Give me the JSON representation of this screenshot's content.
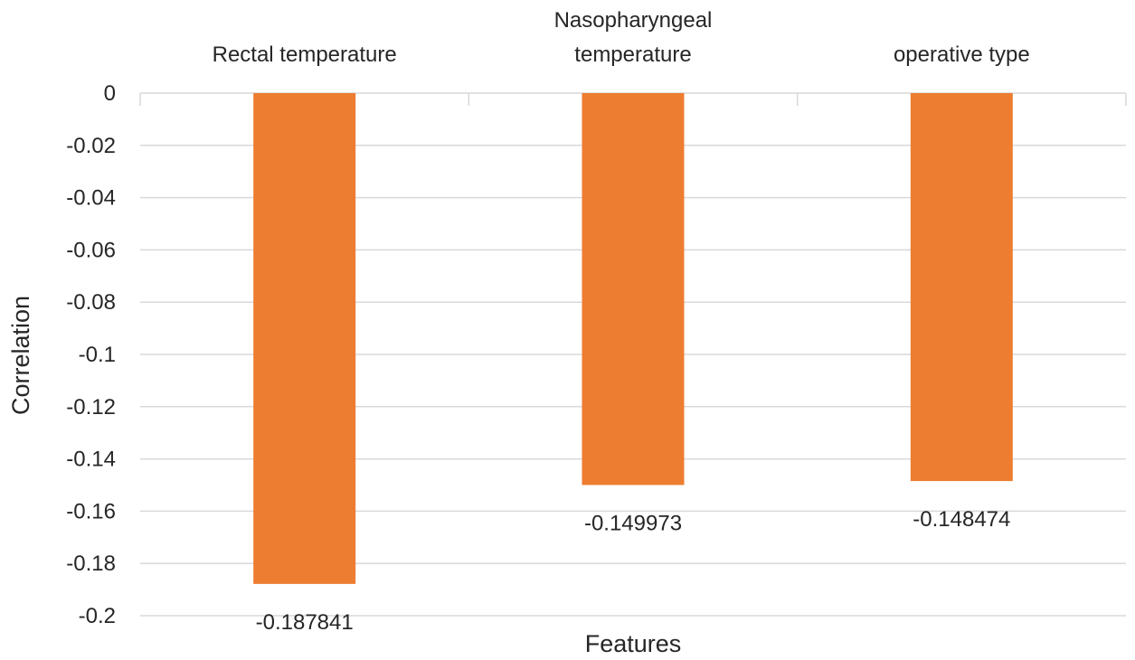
{
  "chart_data": {
    "type": "bar",
    "categories": [
      "Rectal temperature",
      "Nasopharyngeal temperature",
      "operative type"
    ],
    "category_label_lines": [
      [
        "Rectal temperature"
      ],
      [
        "Nasopharyngeal",
        "temperature"
      ],
      [
        "operative type"
      ]
    ],
    "values": [
      -0.187841,
      -0.149973,
      -0.148474
    ],
    "data_labels": [
      "-0.187841",
      "-0.149973",
      "-0.148474"
    ],
    "title": "",
    "xlabel": "Features",
    "ylabel": "Correlation",
    "ylim": [
      -0.2,
      0
    ],
    "yticks": [
      0,
      -0.02,
      -0.04,
      -0.06,
      -0.08,
      -0.1,
      -0.12,
      -0.14,
      -0.16,
      -0.18,
      -0.2
    ],
    "ytick_labels": [
      "0",
      "-0.02",
      "-0.04",
      "-0.06",
      "-0.08",
      "-0.1",
      "-0.12",
      "-0.14",
      "-0.16",
      "-0.18",
      "-0.2"
    ],
    "category_labels_position": "top",
    "grid": true,
    "legend": "none",
    "bar_color": "#ed7d31",
    "grid_color": "#d9d9d9",
    "text_color": "#262626"
  }
}
